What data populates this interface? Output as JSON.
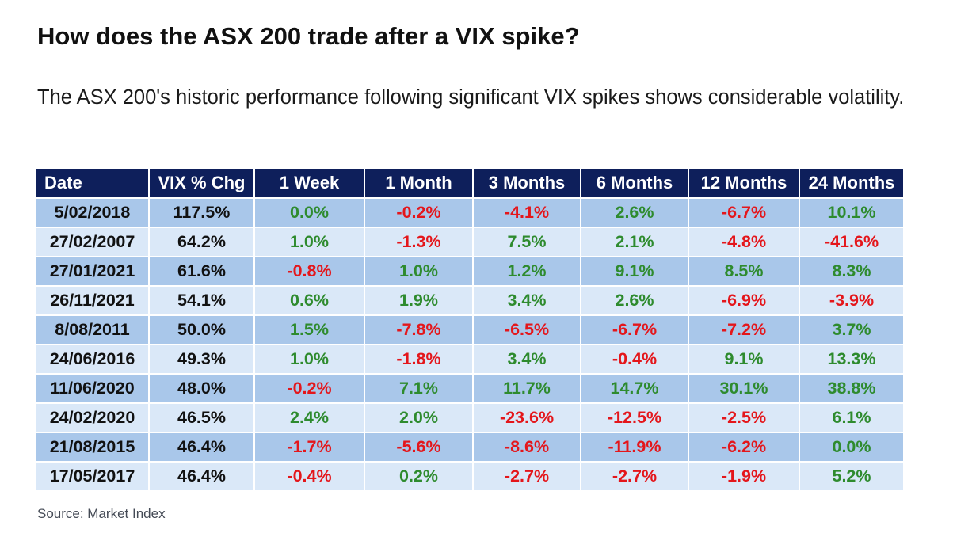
{
  "title": "How does the ASX 200 trade after a VIX spike?",
  "subtitle": "The ASX 200's historic performance following significant VIX spikes shows considerable volatility.",
  "source": "Source: Market Index",
  "colors": {
    "header_bg": "#0e1f5b",
    "row_dark": "#a9c7ea",
    "row_light": "#dae8f8",
    "positive": "#2e8b2e",
    "negative": "#e4161b"
  },
  "chart_data": {
    "type": "table",
    "columns": [
      "Date",
      "VIX  % Chg",
      "1 Week",
      "1 Month",
      "3 Months",
      "6 Months",
      "12 Months",
      "24 Months"
    ],
    "rows": [
      [
        "5/02/2018",
        "117.5%",
        "0.0%",
        "-0.2%",
        "-4.1%",
        "2.6%",
        "-6.7%",
        "10.1%"
      ],
      [
        "27/02/2007",
        "64.2%",
        "1.0%",
        "-1.3%",
        "7.5%",
        "2.1%",
        "-4.8%",
        "-41.6%"
      ],
      [
        "27/01/2021",
        "61.6%",
        "-0.8%",
        "1.0%",
        "1.2%",
        "9.1%",
        "8.5%",
        "8.3%"
      ],
      [
        "26/11/2021",
        "54.1%",
        "0.6%",
        "1.9%",
        "3.4%",
        "2.6%",
        "-6.9%",
        "-3.9%"
      ],
      [
        "8/08/2011",
        "50.0%",
        "1.5%",
        "-7.8%",
        "-6.5%",
        "-6.7%",
        "-7.2%",
        "3.7%"
      ],
      [
        "24/06/2016",
        "49.3%",
        "1.0%",
        "-1.8%",
        "3.4%",
        "-0.4%",
        "9.1%",
        "13.3%"
      ],
      [
        "11/06/2020",
        "48.0%",
        "-0.2%",
        "7.1%",
        "11.7%",
        "14.7%",
        "30.1%",
        "38.8%"
      ],
      [
        "24/02/2020",
        "46.5%",
        "2.4%",
        "2.0%",
        "-23.6%",
        "-12.5%",
        "-2.5%",
        "6.1%"
      ],
      [
        "21/08/2015",
        "46.4%",
        "-1.7%",
        "-5.6%",
        "-8.6%",
        "-11.9%",
        "-6.2%",
        "0.0%"
      ],
      [
        "17/05/2017",
        "46.4%",
        "-0.4%",
        "0.2%",
        "-2.7%",
        "-2.7%",
        "-1.9%",
        "5.2%"
      ]
    ]
  }
}
